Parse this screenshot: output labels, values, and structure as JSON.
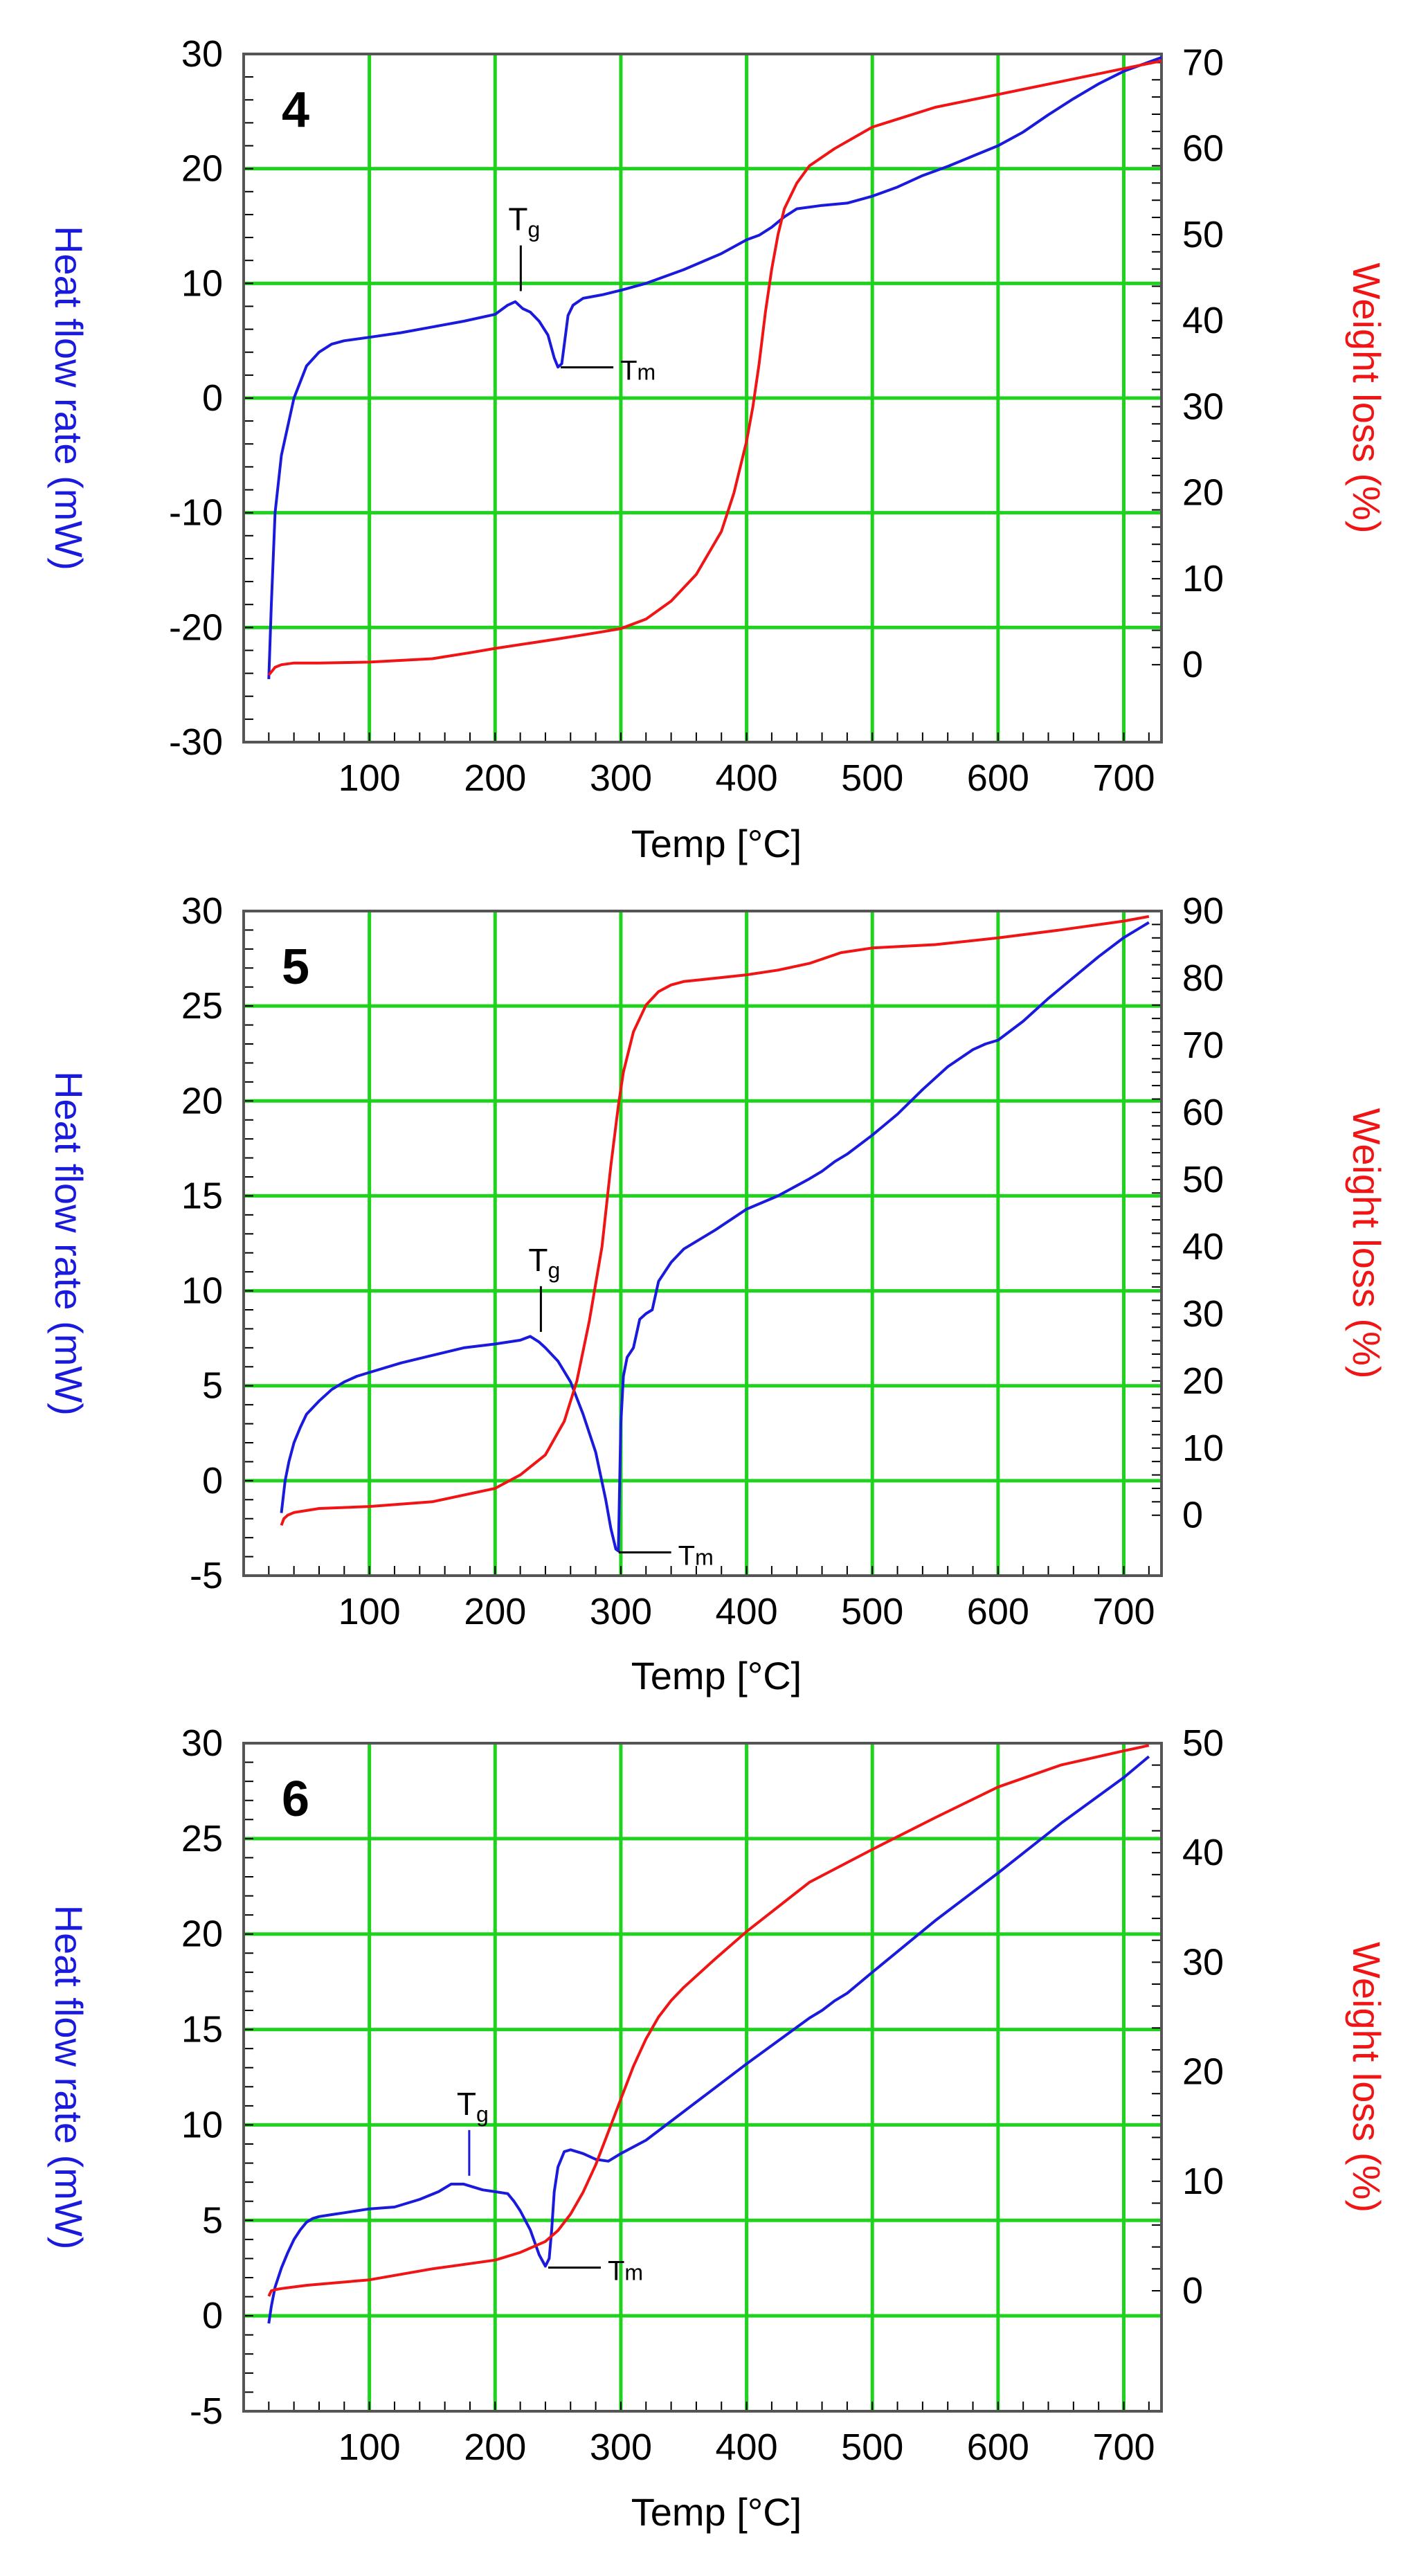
{
  "colors": {
    "heat_flow": "#1a1adc",
    "weight_loss": "#f01414",
    "grid": "#1ed21e",
    "axis": "#000000"
  },
  "chart_data": [
    {
      "type": "line",
      "panel_label": "4",
      "xlabel": "Temp [°C]",
      "ylabel_left": "Heat flow rate (mW)",
      "ylabel_right": "Weight loss (%)",
      "xlim": [
        0,
        730
      ],
      "ylim_left": [
        -30,
        30
      ],
      "ylim_right": [
        -9,
        71
      ],
      "x_ticks": [
        100,
        200,
        300,
        400,
        500,
        600,
        700
      ],
      "y_left_ticks": [
        -30,
        -20,
        -10,
        0,
        10,
        20,
        30
      ],
      "y_right_ticks": [
        0,
        10,
        20,
        30,
        40,
        50,
        60,
        70
      ],
      "grid": true,
      "annotations": [
        {
          "label": "T",
          "sub": "g",
          "x": 216,
          "y": 8.6
        },
        {
          "label": "T",
          "sub": "m",
          "x": 250,
          "y": 2.8
        }
      ],
      "series": [
        {
          "name": "Heat flow rate (mW)",
          "axis": "left",
          "x": [
            20,
            22,
            25,
            30,
            40,
            50,
            60,
            70,
            80,
            100,
            125,
            150,
            175,
            200,
            205,
            210,
            216,
            222,
            228,
            235,
            242,
            247,
            250,
            253,
            256,
            258,
            262,
            270,
            285,
            300,
            320,
            350,
            380,
            400,
            410,
            420,
            430,
            440,
            460,
            480,
            500,
            520,
            540,
            560,
            580,
            600,
            620,
            640,
            660,
            680,
            700,
            720,
            730
          ],
          "values": [
            -24.5,
            -18,
            -10,
            -5,
            0,
            2.8,
            4,
            4.7,
            5.0,
            5.3,
            5.7,
            6.2,
            6.7,
            7.3,
            7.7,
            8.1,
            8.4,
            7.8,
            7.5,
            6.7,
            5.5,
            3.5,
            2.7,
            3.0,
            5.5,
            7.2,
            8.1,
            8.7,
            9.0,
            9.4,
            10.0,
            11.2,
            12.6,
            13.8,
            14.2,
            14.9,
            15.8,
            16.5,
            16.8,
            17.0,
            17.6,
            18.4,
            19.4,
            20.2,
            21.1,
            22.0,
            23.2,
            24.7,
            26.1,
            27.4,
            28.5,
            29.3,
            29.7
          ]
        },
        {
          "name": "Weight loss (%)",
          "axis": "right",
          "x": [
            20,
            25,
            30,
            40,
            60,
            100,
            150,
            180,
            200,
            250,
            280,
            300,
            320,
            340,
            360,
            380,
            390,
            400,
            405,
            410,
            415,
            420,
            425,
            430,
            440,
            450,
            470,
            500,
            550,
            600,
            650,
            700,
            730
          ],
          "values": [
            -1.2,
            -0.3,
            0,
            0.2,
            0.2,
            0.3,
            0.7,
            1.4,
            1.9,
            3.0,
            3.7,
            4.2,
            5.3,
            7.4,
            10.5,
            15.5,
            20.0,
            26.0,
            30.0,
            35.0,
            41.0,
            46.0,
            50.0,
            53.0,
            56.0,
            58.0,
            60.0,
            62.5,
            64.8,
            66.3,
            67.8,
            69.3,
            70.2
          ]
        }
      ]
    },
    {
      "type": "line",
      "panel_label": "5",
      "xlabel": "Temp [°C]",
      "ylabel_left": "Heat flow rate (mW)",
      "ylabel_right": "Weight loss (%)",
      "xlim": [
        0,
        730
      ],
      "ylim_left": [
        -5,
        30
      ],
      "ylim_right": [
        -9,
        90
      ],
      "x_ticks": [
        100,
        200,
        300,
        400,
        500,
        600,
        700
      ],
      "y_left_ticks": [
        -5,
        0,
        5,
        10,
        15,
        20,
        25,
        30
      ],
      "y_right_ticks": [
        0,
        10,
        20,
        30,
        40,
        50,
        60,
        70,
        80,
        90
      ],
      "grid": true,
      "annotations": [
        {
          "label": "T",
          "sub": "g",
          "x": 232,
          "y": 7.4
        },
        {
          "label": "T",
          "sub": "m",
          "x": 296,
          "y": -3.7
        }
      ],
      "series": [
        {
          "name": "Heat flow rate (mW)",
          "axis": "left",
          "x": [
            30,
            33,
            36,
            40,
            45,
            50,
            60,
            70,
            80,
            90,
            100,
            125,
            150,
            175,
            200,
            210,
            220,
            228,
            235,
            240,
            250,
            260,
            270,
            280,
            288,
            292,
            296,
            298,
            300,
            302,
            305,
            310,
            315,
            320,
            325,
            330,
            340,
            350,
            375,
            400,
            425,
            450,
            460,
            470,
            480,
            500,
            520,
            540,
            560,
            580,
            590,
            600,
            620,
            640,
            660,
            680,
            700,
            720
          ],
          "values": [
            -1.7,
            0,
            1.0,
            2.0,
            2.8,
            3.5,
            4.2,
            4.8,
            5.2,
            5.5,
            5.7,
            6.2,
            6.6,
            7.0,
            7.2,
            7.3,
            7.4,
            7.6,
            7.3,
            7.0,
            6.3,
            5.2,
            3.5,
            1.5,
            -1.0,
            -2.5,
            -3.6,
            -3.7,
            3.0,
            5.5,
            6.5,
            7.0,
            8.5,
            8.8,
            9.0,
            10.5,
            11.5,
            12.2,
            13.2,
            14.3,
            15.0,
            15.9,
            16.3,
            16.8,
            17.2,
            18.2,
            19.3,
            20.6,
            21.8,
            22.7,
            23.0,
            23.2,
            24.2,
            25.4,
            26.5,
            27.6,
            28.6,
            29.4
          ]
        },
        {
          "name": "Weight loss (%)",
          "axis": "right",
          "x": [
            30,
            32,
            35,
            40,
            60,
            100,
            150,
            200,
            220,
            240,
            255,
            265,
            275,
            285,
            292,
            298,
            302,
            310,
            320,
            330,
            340,
            350,
            375,
            400,
            425,
            450,
            475,
            500,
            550,
            600,
            650,
            700,
            720
          ],
          "values": [
            -1.5,
            -0.5,
            0,
            0.4,
            1.0,
            1.3,
            2.0,
            4.0,
            6.0,
            9.0,
            14.0,
            20.0,
            29.0,
            40.0,
            52.0,
            61.0,
            66.0,
            72.0,
            76.0,
            78.0,
            79.0,
            79.5,
            80.0,
            80.5,
            81.2,
            82.2,
            83.8,
            84.5,
            85.0,
            86.0,
            87.2,
            88.5,
            89.2
          ]
        }
      ]
    },
    {
      "type": "line",
      "panel_label": "6",
      "xlabel": "Temp [°C]",
      "ylabel_left": "Heat flow rate (mW)",
      "ylabel_right": "Weight loss (%)",
      "xlim": [
        0,
        730
      ],
      "ylim_left": [
        -5,
        30
      ],
      "ylim_right": [
        -11,
        50
      ],
      "x_ticks": [
        100,
        200,
        300,
        400,
        500,
        600,
        700
      ],
      "y_left_ticks": [
        -5,
        0,
        5,
        10,
        15,
        20,
        25,
        30
      ],
      "y_right_ticks": [
        0,
        10,
        20,
        30,
        40,
        50
      ],
      "grid": true,
      "annotations": [
        {
          "label": "T",
          "sub": "g",
          "x": 175,
          "y": 6.9
        },
        {
          "label": "T",
          "sub": "m",
          "x": 240,
          "y": 2.6
        }
      ],
      "series": [
        {
          "name": "Heat flow rate (mW)",
          "axis": "left",
          "x": [
            20,
            22,
            25,
            30,
            35,
            40,
            45,
            50,
            55,
            60,
            70,
            80,
            100,
            120,
            140,
            155,
            165,
            175,
            185,
            190,
            200,
            210,
            215,
            220,
            228,
            235,
            240,
            243,
            245,
            247,
            250,
            255,
            260,
            270,
            280,
            290,
            300,
            320,
            350,
            400,
            450,
            460,
            470,
            480,
            500,
            550,
            600,
            650,
            700,
            720
          ],
          "values": [
            -0.4,
            0.5,
            1.5,
            2.5,
            3.3,
            4.0,
            4.5,
            4.9,
            5.1,
            5.2,
            5.3,
            5.4,
            5.6,
            5.7,
            6.1,
            6.5,
            6.9,
            6.9,
            6.7,
            6.6,
            6.5,
            6.4,
            6.0,
            5.5,
            4.5,
            3.2,
            2.6,
            3.0,
            4.5,
            6.5,
            7.8,
            8.6,
            8.7,
            8.5,
            8.2,
            8.1,
            8.5,
            9.2,
            10.7,
            13.2,
            15.6,
            16.0,
            16.5,
            16.9,
            18.0,
            20.7,
            23.2,
            25.8,
            28.2,
            29.3
          ]
        },
        {
          "name": "Weight loss (%)",
          "axis": "right",
          "x": [
            20,
            22,
            25,
            30,
            50,
            100,
            150,
            200,
            220,
            240,
            250,
            260,
            270,
            280,
            290,
            300,
            310,
            320,
            330,
            340,
            350,
            375,
            400,
            450,
            500,
            550,
            600,
            650,
            700,
            720
          ],
          "values": [
            -0.5,
            0,
            0.1,
            0.2,
            0.5,
            1.0,
            2.0,
            2.8,
            3.5,
            4.5,
            5.5,
            7.0,
            9.0,
            11.5,
            14.5,
            17.5,
            20.5,
            23.0,
            25.0,
            26.5,
            27.7,
            30.3,
            32.8,
            37.3,
            40.3,
            43.2,
            46.0,
            48.0,
            49.3,
            49.8
          ]
        }
      ]
    }
  ]
}
